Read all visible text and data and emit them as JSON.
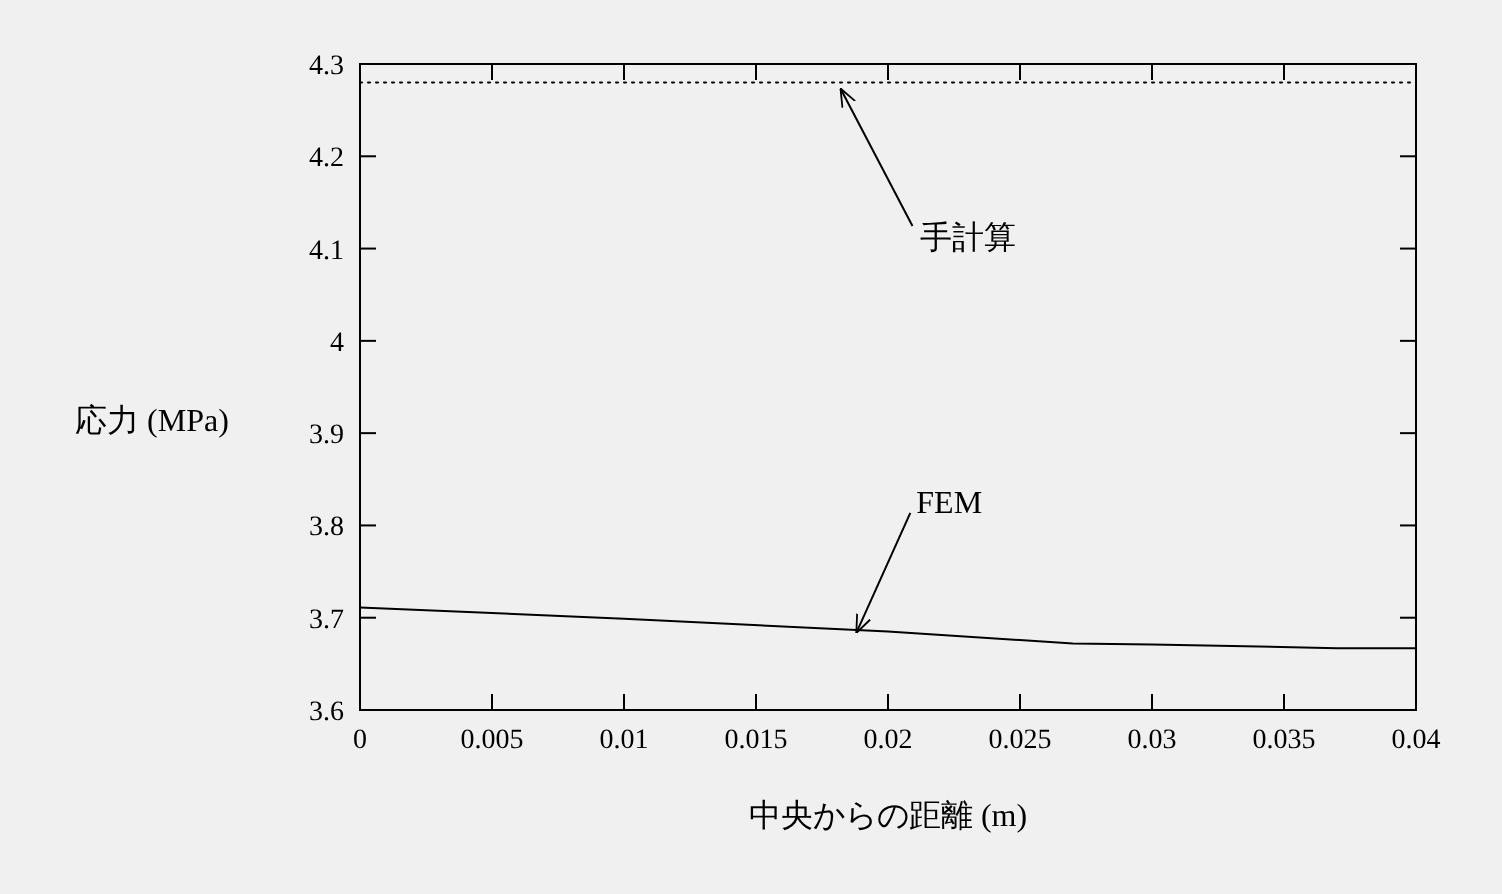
{
  "chart_data": {
    "type": "line",
    "xlabel": "中央からの距離 (m)",
    "ylabel": "応力 (MPa)",
    "xlim": [
      0,
      0.04
    ],
    "ylim": [
      3.6,
      4.3
    ],
    "xticks": [
      0,
      0.005,
      0.01,
      0.015,
      0.02,
      0.025,
      0.03,
      0.035,
      0.04
    ],
    "yticks": [
      3.6,
      3.7,
      3.8,
      3.9,
      4,
      4.1,
      4.2,
      4.3
    ],
    "series": [
      {
        "color": "#000000",
        "line_style": "solid",
        "x": [
          0,
          0.01,
          0.02,
          0.027,
          0.03,
          0.037,
          0.04
        ],
        "values": [
          3.711,
          3.699,
          3.685,
          3.672,
          3.671,
          3.667,
          3.667
        ]
      },
      {
        "color": "#000000",
        "line_style": "dotted",
        "x": [
          0,
          0.04
        ],
        "values": [
          4.28,
          4.28
        ]
      }
    ],
    "annotations": [
      {
        "text": "手計算",
        "x": 0.0182,
        "y": 4.28
      },
      {
        "text": "FEM",
        "x": 0.0188,
        "y": 3.69
      }
    ],
    "grid": false,
    "marker": "none"
  }
}
